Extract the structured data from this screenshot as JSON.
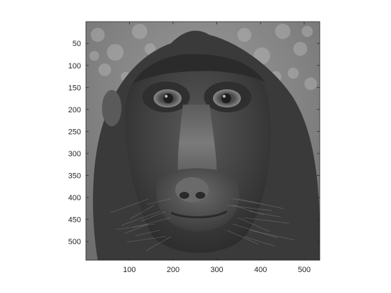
{
  "chart_data": {
    "type": "image",
    "image": {
      "subject": "macaque-face-grayscale",
      "colormap": "gray"
    },
    "x": {
      "range": [
        0.5,
        535.5
      ],
      "ticks": [
        100,
        200,
        300,
        400,
        500
      ],
      "tick_labels": [
        "100",
        "200",
        "300",
        "400",
        "500"
      ]
    },
    "y": {
      "range": [
        0.5,
        542.5
      ],
      "reversed": true,
      "ticks": [
        50,
        100,
        150,
        200,
        250,
        300,
        350,
        400,
        450,
        500
      ],
      "tick_labels": [
        "50",
        "100",
        "150",
        "200",
        "250",
        "300",
        "350",
        "400",
        "450",
        "500"
      ]
    },
    "title": "",
    "xlabel": "",
    "ylabel": "",
    "grid": false,
    "colors": {
      "axis": "#262626",
      "background": "#ffffff"
    }
  }
}
